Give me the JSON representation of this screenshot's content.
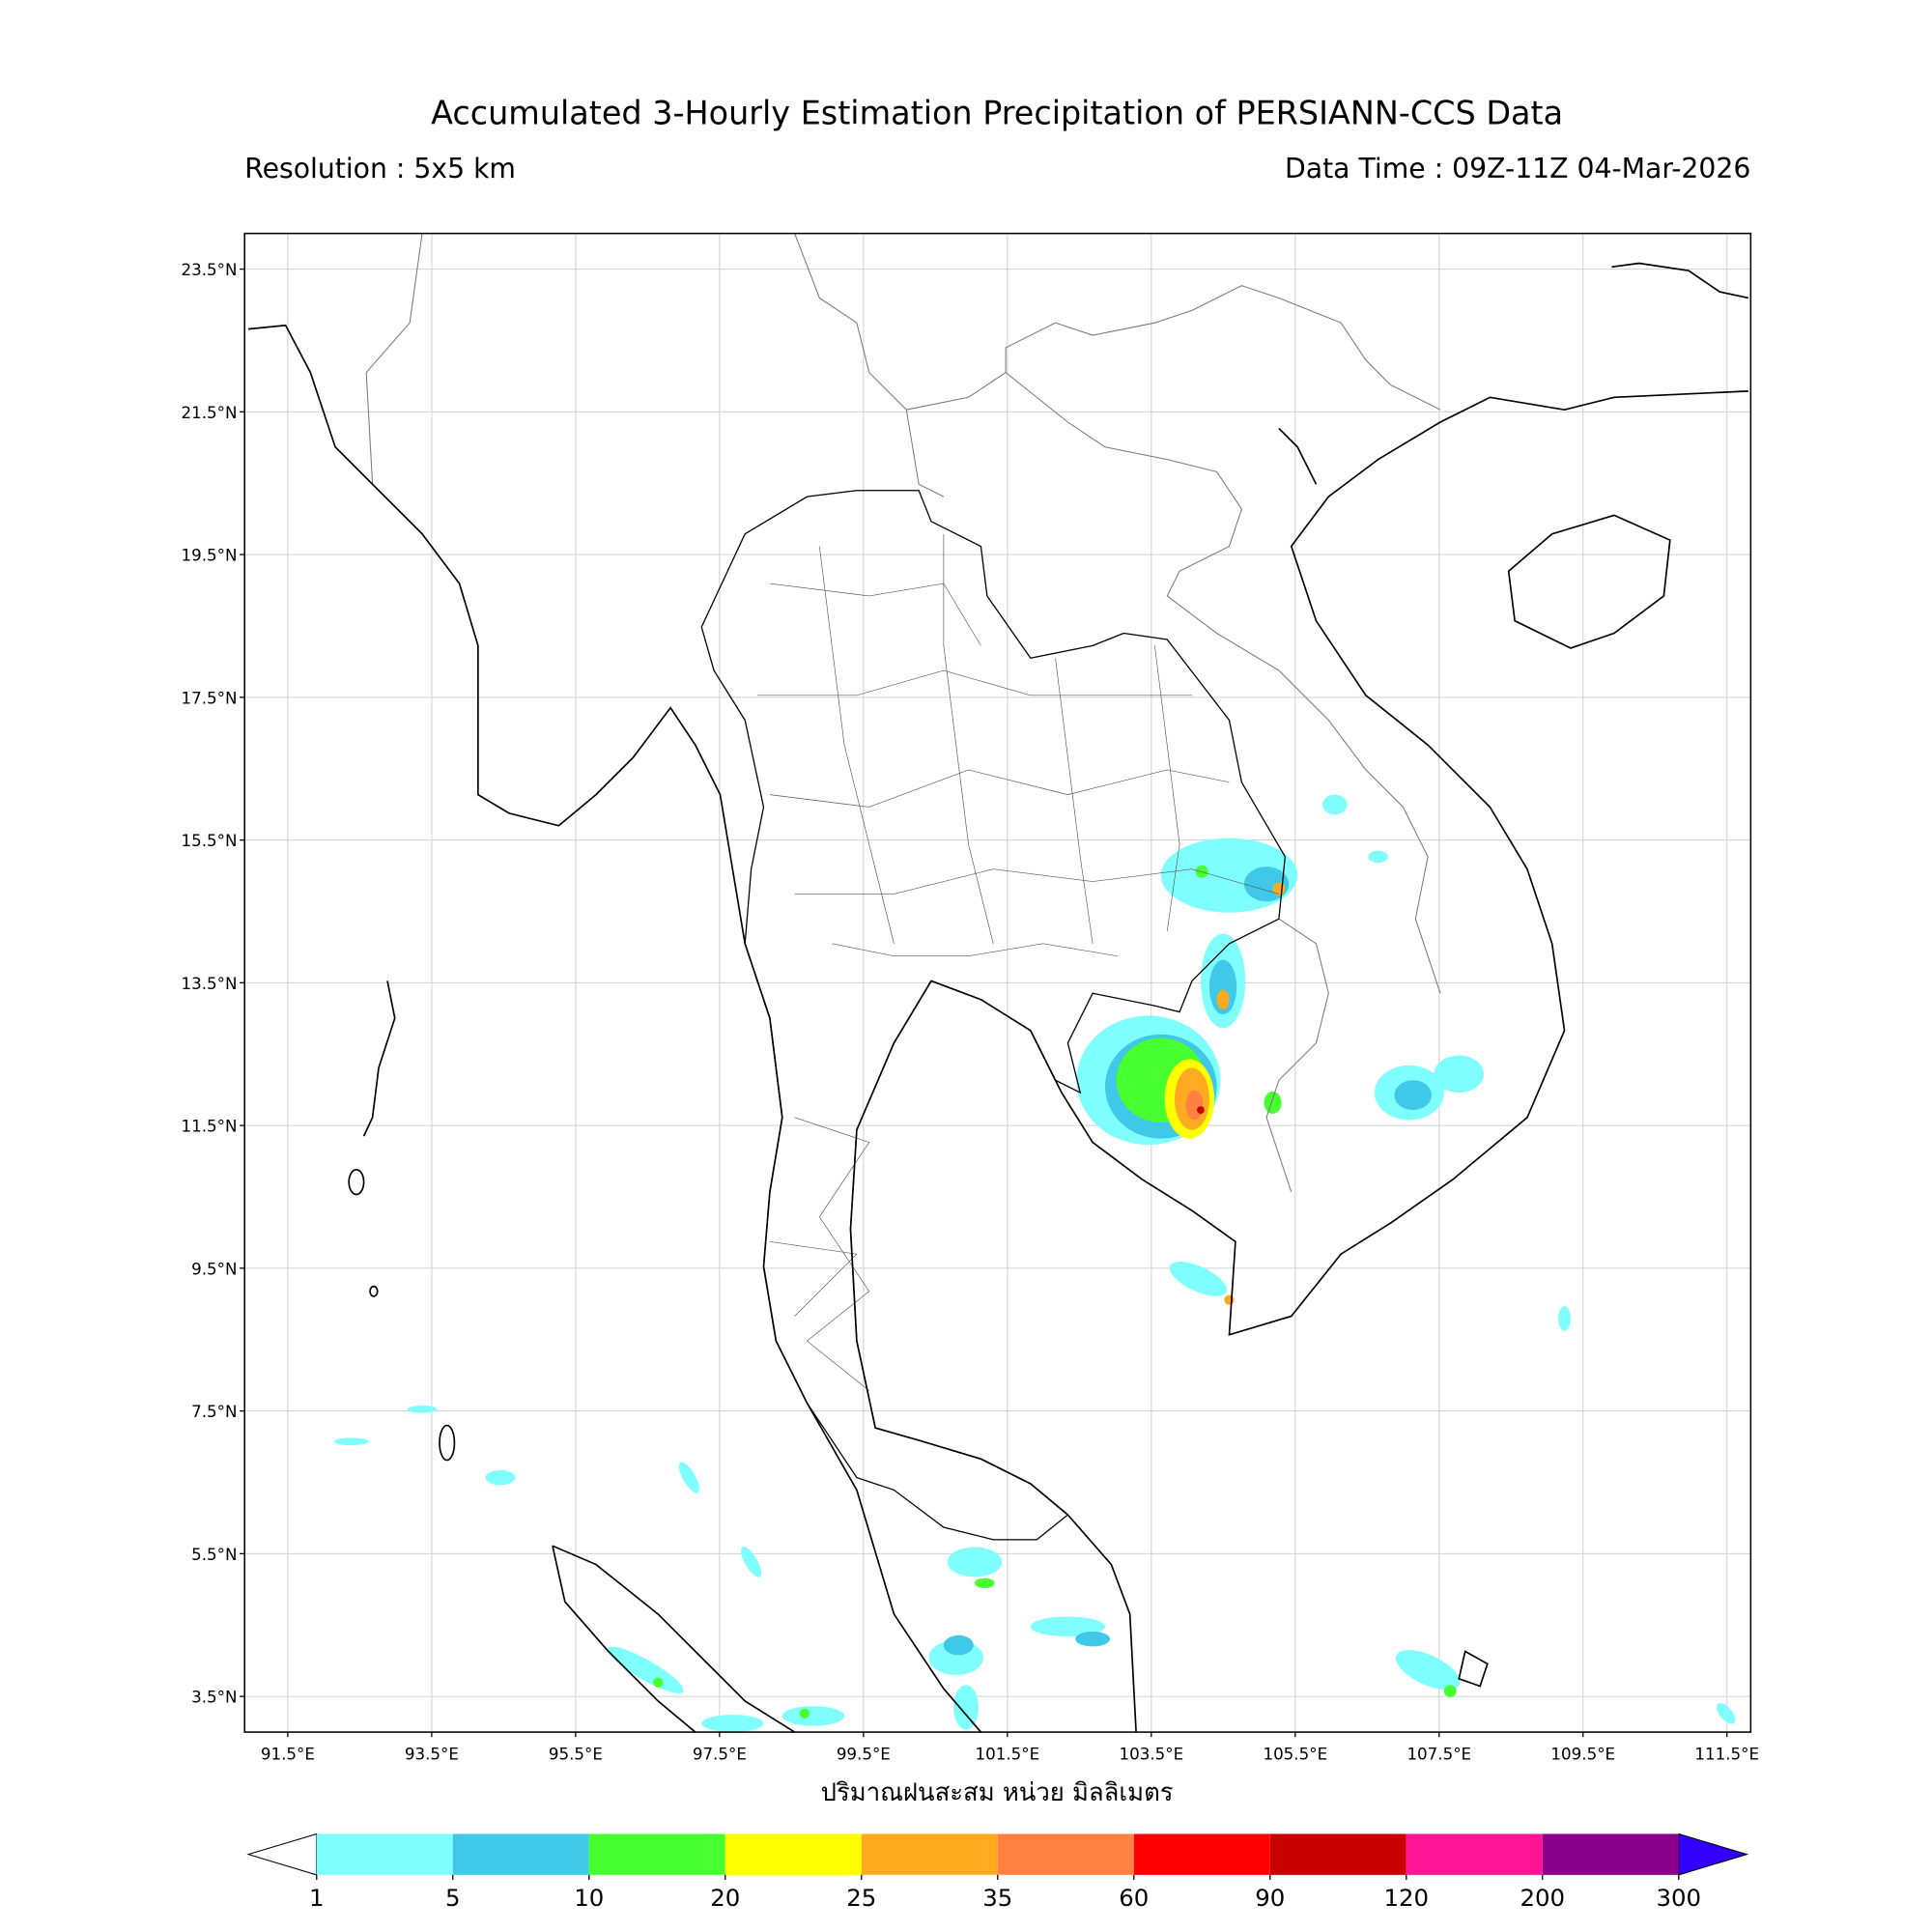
{
  "map": {
    "title": "Accumulated 3-Hourly Estimation Precipitation of PERSIANN-CCS Data",
    "resolution": "Resolution : 5x5 km",
    "data_time": "Data Time : 09Z-11Z 04-Mar-2026",
    "xlabel": "ปริมาณฝนสะสม หน่วย มิลลิเมตร",
    "xlim": [
      90.9,
      111.83
    ],
    "ylim": [
      3.0,
      24.0
    ],
    "grid": true,
    "xticks": [
      {
        "value": 91.5,
        "label": "91.5°E"
      },
      {
        "value": 93.5,
        "label": "93.5°E"
      },
      {
        "value": 95.5,
        "label": "95.5°E"
      },
      {
        "value": 97.5,
        "label": "97.5°E"
      },
      {
        "value": 99.5,
        "label": "99.5°E"
      },
      {
        "value": 101.5,
        "label": "101.5°E"
      },
      {
        "value": 103.5,
        "label": "103.5°E"
      },
      {
        "value": 105.5,
        "label": "105.5°E"
      },
      {
        "value": 107.5,
        "label": "107.5°E"
      },
      {
        "value": 109.5,
        "label": "109.5°E"
      },
      {
        "value": 111.5,
        "label": "111.5°E"
      }
    ],
    "yticks": [
      {
        "value": 23.5,
        "label": "23.5°N"
      },
      {
        "value": 21.5,
        "label": "21.5°N"
      },
      {
        "value": 19.5,
        "label": "19.5°N"
      },
      {
        "value": 17.5,
        "label": "17.5°N"
      },
      {
        "value": 15.5,
        "label": "15.5°N"
      },
      {
        "value": 13.5,
        "label": "13.5°N"
      },
      {
        "value": 11.5,
        "label": "11.5°N"
      },
      {
        "value": 9.5,
        "label": "9.5°N"
      },
      {
        "value": 7.5,
        "label": "7.5°N"
      },
      {
        "value": 5.5,
        "label": "5.5°N"
      },
      {
        "value": 3.5,
        "label": "3.5°N"
      }
    ],
    "colorbar": {
      "levels": [
        1,
        5,
        10,
        20,
        25,
        35,
        60,
        90,
        120,
        200,
        300
      ],
      "colors": [
        "#80ffff",
        "#40c8e8",
        "#48ff30",
        "#ffff00",
        "#ffaa20",
        "#ff8040",
        "#ff0000",
        "#c80000",
        "#ff1493",
        "#8b008b"
      ],
      "under_color": "#ffffff",
      "over_color": "#3300ff"
    }
  }
}
